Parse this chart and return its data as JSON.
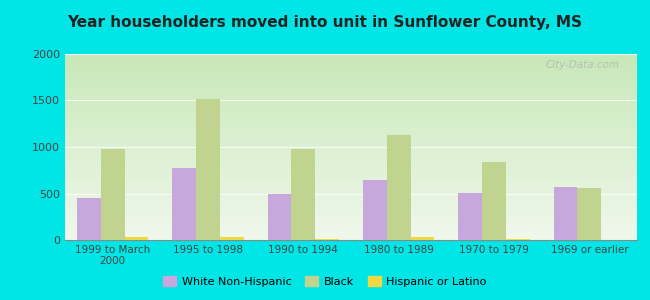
{
  "title": "Year householders moved into unit in Sunflower County, MS",
  "categories": [
    "1999 to March\n2000",
    "1995 to 1998",
    "1990 to 1994",
    "1980 to 1989",
    "1970 to 1979",
    "1969 or earlier"
  ],
  "series": {
    "White Non-Hispanic": [
      450,
      775,
      495,
      640,
      505,
      570
    ],
    "Black": [
      975,
      1515,
      980,
      1125,
      835,
      560
    ],
    "Hispanic or Latino": [
      30,
      30,
      10,
      30,
      10,
      0
    ]
  },
  "colors": {
    "White Non-Hispanic": "#c8a8dc",
    "Black": "#c0d490",
    "Hispanic or Latino": "#f0d840"
  },
  "ylim": [
    0,
    2000
  ],
  "yticks": [
    0,
    500,
    1000,
    1500,
    2000
  ],
  "background_color": "#00e5e5",
  "grad_top": "#e8f5e0",
  "grad_bottom": "#d0ecc0",
  "bar_width": 0.25,
  "legend_entries": [
    "White Non-Hispanic",
    "Black",
    "Hispanic or Latino"
  ],
  "watermark": "City-Data.com"
}
